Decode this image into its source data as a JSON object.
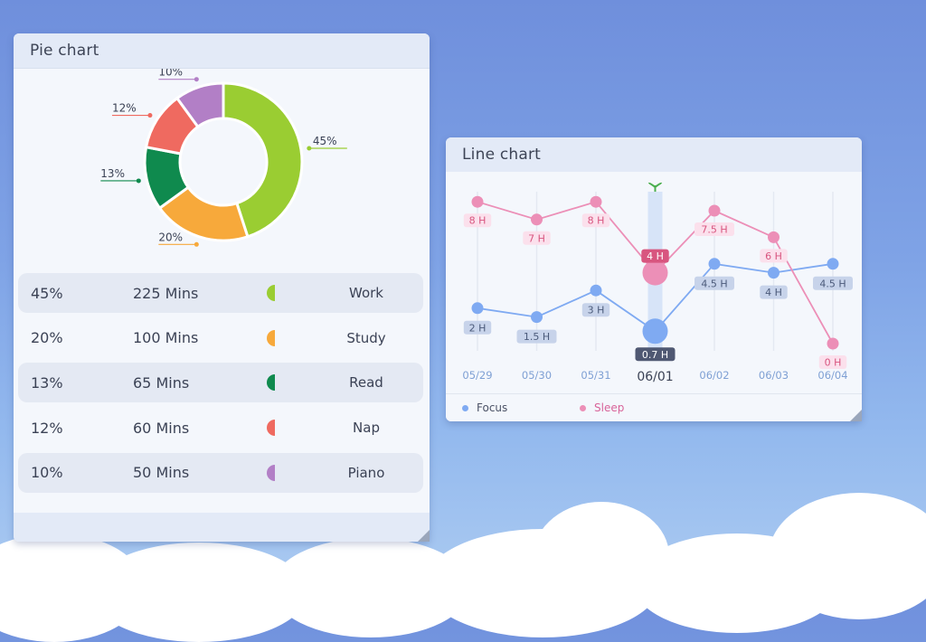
{
  "pie_card": {
    "title": "Pie chart",
    "rows": [
      {
        "pct": "45%",
        "mins": "225 Mins",
        "name": "Work",
        "color": "#9acd32"
      },
      {
        "pct": "20%",
        "mins": "100 Mins",
        "name": "Study",
        "color": "#f7a93b"
      },
      {
        "pct": "13%",
        "mins": "65 Mins",
        "name": "Read",
        "color": "#0f8a4e"
      },
      {
        "pct": "12%",
        "mins": "60 Mins",
        "name": "Nap",
        "color": "#ef6a60"
      },
      {
        "pct": "10%",
        "mins": "50 Mins",
        "name": "Piano",
        "color": "#b27fc6"
      }
    ]
  },
  "line_card": {
    "title": "Line chart",
    "legend": [
      {
        "name": "Focus",
        "color": "#7faaf2"
      },
      {
        "name": "Sleep",
        "color": "#ec8fb7"
      }
    ]
  },
  "chart_data": [
    {
      "type": "pie",
      "title": "Pie chart",
      "donut": true,
      "categories": [
        "Work",
        "Study",
        "Read",
        "Nap",
        "Piano"
      ],
      "values": [
        45,
        20,
        13,
        12,
        10
      ],
      "labels": [
        "45%",
        "20%",
        "13%",
        "12%",
        "10%"
      ],
      "colors": [
        "#9acd32",
        "#f7a93b",
        "#0f8a4e",
        "#ef6a60",
        "#b27fc6"
      ]
    },
    {
      "type": "line",
      "title": "Line chart",
      "x": [
        "05/29",
        "05/30",
        "05/31",
        "06/01",
        "06/02",
        "06/03",
        "06/04"
      ],
      "highlight_x": "06/01",
      "series": [
        {
          "name": "Focus",
          "values": [
            2,
            1.5,
            3,
            0.7,
            4.5,
            4,
            4.5
          ],
          "labels": [
            "2 H",
            "1.5 H",
            "3 H",
            "0.7 H",
            "4.5 H",
            "4 H",
            "4.5 H"
          ],
          "color": "#7faaf2"
        },
        {
          "name": "Sleep",
          "values": [
            8,
            7,
            8,
            4,
            7.5,
            6,
            0
          ],
          "labels": [
            "8 H",
            "7 H",
            "8 H",
            "4 H",
            "7.5 H",
            "6 H",
            "0 H"
          ],
          "color": "#ec8fb7"
        }
      ],
      "grid": true,
      "legend_position": "bottom-left"
    }
  ]
}
